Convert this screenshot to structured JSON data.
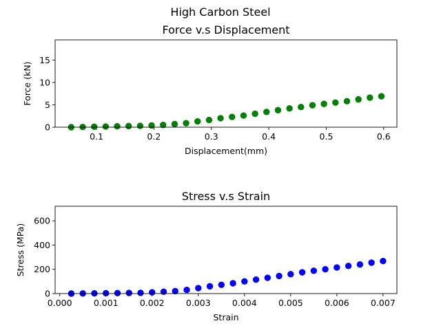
{
  "figure": {
    "suptitle": "High Carbon Steel"
  },
  "chart_data": [
    {
      "type": "scatter",
      "title": "Force v.s Displacement",
      "xlabel": "Displacement(mm)",
      "ylabel": "Force (kN)",
      "xlim": [
        0.028,
        0.623
      ],
      "ylim": [
        0,
        19.5
      ],
      "xticks": [
        0.1,
        0.2,
        0.3,
        0.4,
        0.5,
        0.6
      ],
      "yticks": [
        0,
        5,
        10,
        15
      ],
      "xtick_labels": [
        "0.1",
        "0.2",
        "0.3",
        "0.4",
        "0.5",
        "0.6"
      ],
      "ytick_labels": [
        "0",
        "5",
        "10",
        "15"
      ],
      "color": "#008000",
      "grid": false,
      "x": [
        0.056,
        0.076,
        0.096,
        0.116,
        0.136,
        0.156,
        0.176,
        0.196,
        0.216,
        0.236,
        0.256,
        0.276,
        0.296,
        0.316,
        0.336,
        0.356,
        0.376,
        0.396,
        0.416,
        0.436,
        0.456,
        0.476,
        0.496,
        0.516,
        0.536,
        0.556,
        0.576,
        0.596
      ],
      "y": [
        0.0,
        0.05,
        0.1,
        0.15,
        0.2,
        0.25,
        0.3,
        0.4,
        0.5,
        0.7,
        0.9,
        1.3,
        1.6,
        2.0,
        2.3,
        2.6,
        3.0,
        3.4,
        3.8,
        4.2,
        4.5,
        4.9,
        5.2,
        5.5,
        5.8,
        6.2,
        6.6,
        6.9
      ]
    },
    {
      "type": "scatter",
      "title": "Stress v.s Strain",
      "xlabel": "Strain",
      "ylabel": "Stress (MPa)",
      "xlim": [
        -0.0001,
        0.0073
      ],
      "ylim": [
        0,
        720
      ],
      "xticks": [
        0.0,
        0.001,
        0.002,
        0.003,
        0.004,
        0.005,
        0.006,
        0.007
      ],
      "yticks": [
        0,
        200,
        400,
        600
      ],
      "xtick_labels": [
        "0.000",
        "0.001",
        "0.002",
        "0.003",
        "0.004",
        "0.005",
        "0.006",
        "0.007"
      ],
      "ytick_labels": [
        "0",
        "200",
        "400",
        "600"
      ],
      "color": "#0000ff",
      "grid": false,
      "x": [
        0.00025,
        0.0005,
        0.00075,
        0.001,
        0.00125,
        0.0015,
        0.00175,
        0.002,
        0.00225,
        0.0025,
        0.00275,
        0.003,
        0.00325,
        0.0035,
        0.00375,
        0.004,
        0.00425,
        0.0045,
        0.00475,
        0.005,
        0.00525,
        0.0055,
        0.00575,
        0.006,
        0.00625,
        0.0065,
        0.00675,
        0.007
      ],
      "y": [
        0,
        1,
        2,
        3,
        4,
        5,
        6,
        10,
        15,
        20,
        30,
        45,
        60,
        72,
        85,
        100,
        115,
        130,
        145,
        160,
        175,
        188,
        200,
        215,
        228,
        240,
        255,
        268
      ]
    }
  ]
}
